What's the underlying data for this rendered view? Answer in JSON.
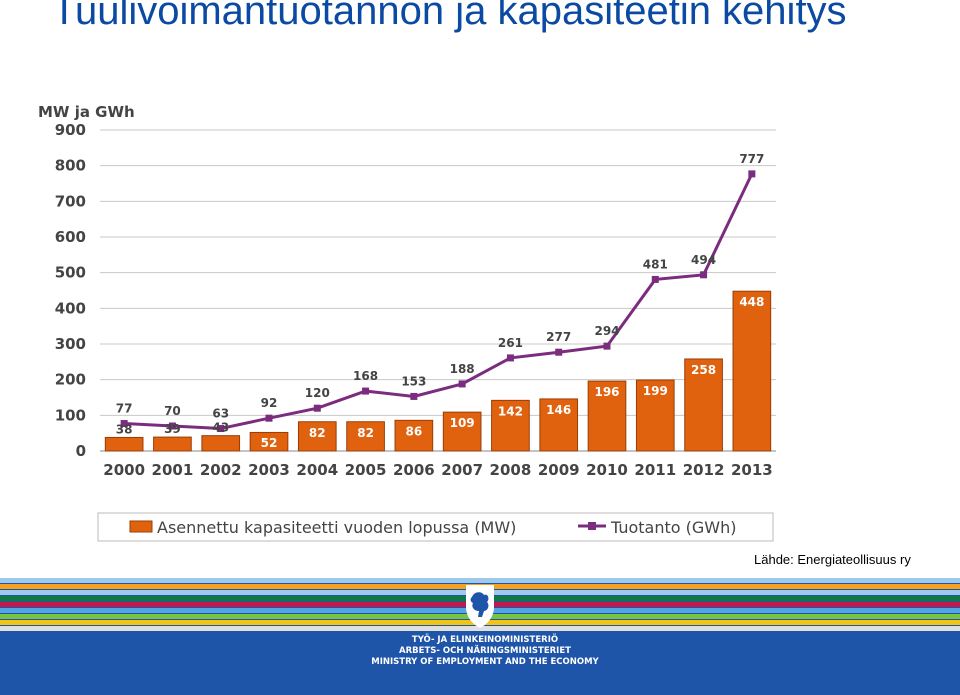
{
  "page": {
    "title": "Tuulivoimantuotannon ja kapasiteetin kehitys",
    "source": "Lähde: Energiateollisuus ry"
  },
  "footer": {
    "ministry_lines": [
      "TYÖ- JA ELINKEINOMINISTERIÖ",
      "ARBETS- OCH NÄRINGSMINISTERIET",
      "MINISTRY OF EMPLOYMENT AND THE ECONOMY"
    ],
    "stripe_colors": [
      "#9ec8ec",
      "#f7a01e",
      "#9ec8ec",
      "#0f7a3c",
      "#c1194c",
      "#4fa6e0",
      "#7bc143",
      "#f0c419",
      "#e0e0e0"
    ]
  },
  "chart_data": {
    "type": "bar",
    "ylabel": "MW ja GWh",
    "ylim": [
      0,
      900
    ],
    "yticks": [
      0,
      100,
      200,
      300,
      400,
      500,
      600,
      700,
      800,
      900
    ],
    "grid": true,
    "legend_position": "bottom",
    "categories": [
      "2000",
      "2001",
      "2002",
      "2003",
      "2004",
      "2005",
      "2006",
      "2007",
      "2008",
      "2009",
      "2010",
      "2011",
      "2012",
      "2013"
    ],
    "series": [
      {
        "name": "Asennettu kapasiteetti vuoden lopussa (MW)",
        "type": "bar",
        "color": "#e0620f",
        "values": [
          38,
          39,
          43,
          52,
          82,
          82,
          86,
          109,
          142,
          146,
          196,
          199,
          258,
          448
        ]
      },
      {
        "name": "Tuotanto (GWh)",
        "type": "line",
        "color": "#7b2c7e",
        "values": [
          77,
          70,
          63,
          92,
          120,
          168,
          153,
          188,
          261,
          277,
          294,
          481,
          494,
          777
        ]
      }
    ]
  }
}
